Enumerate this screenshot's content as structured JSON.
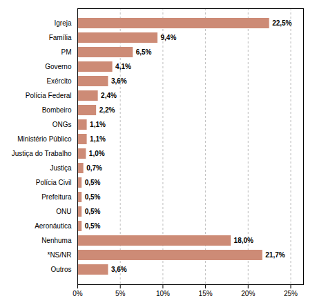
{
  "chart_data": {
    "type": "bar",
    "orientation": "horizontal",
    "categories": [
      "Igreja",
      "Família",
      "PM",
      "Governo",
      "Exército",
      "Polícia Federal",
      "Bombeiro",
      "ONGs",
      "Ministério Público",
      "Justiça do Trabalho",
      "Justiça",
      "Polícia Civil",
      "Prefeitura",
      "ONU",
      "Aeronáutica",
      "Nenhuma",
      "*NS/NR",
      "Outros"
    ],
    "values": [
      22.5,
      9.4,
      6.5,
      4.1,
      3.6,
      2.4,
      2.2,
      1.1,
      1.1,
      1.0,
      0.7,
      0.5,
      0.5,
      0.5,
      0.5,
      18.0,
      21.7,
      3.6
    ],
    "value_labels": [
      "22,5%",
      "9,4%",
      "6,5%",
      "4,1%",
      "3,6%",
      "2,4%",
      "2,2%",
      "1,1%",
      "1,1%",
      "1,0%",
      "0,7%",
      "0,5%",
      "0,5%",
      "0,5%",
      "0,5%",
      "18,0%",
      "21,7%",
      "3,6%"
    ],
    "data_labels": true,
    "color": "#cd8b76",
    "xlim": [
      0,
      26.5
    ],
    "xticks": [
      {
        "value": 0,
        "label": "0%"
      },
      {
        "value": 5,
        "label": "5%"
      },
      {
        "value": 10,
        "label": "10%"
      },
      {
        "value": 15,
        "label": "15%"
      },
      {
        "value": 20,
        "label": "20%"
      },
      {
        "value": 25,
        "label": "25%"
      }
    ],
    "grid": true
  }
}
